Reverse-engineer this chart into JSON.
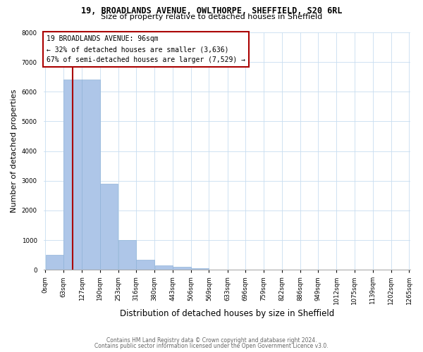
{
  "title1": "19, BROADLANDS AVENUE, OWLTHORPE, SHEFFIELD, S20 6RL",
  "title2": "Size of property relative to detached houses in Sheffield",
  "xlabel": "Distribution of detached houses by size in Sheffield",
  "ylabel": "Number of detached properties",
  "footer1": "Contains HM Land Registry data © Crown copyright and database right 2024.",
  "footer2": "Contains public sector information licensed under the Open Government Licence v3.0.",
  "annotation_line1": "19 BROADLANDS AVENUE: 96sqm",
  "annotation_line2": "← 32% of detached houses are smaller (3,636)",
  "annotation_line3": "67% of semi-detached houses are larger (7,529) →",
  "property_size": 96,
  "bar_left_edges": [
    0,
    63,
    127,
    190,
    253,
    316,
    380,
    443,
    506,
    569,
    633,
    696,
    759,
    822,
    886,
    949,
    1012,
    1075,
    1139,
    1202
  ],
  "bar_heights": [
    500,
    6400,
    6400,
    2900,
    1000,
    340,
    150,
    100,
    60,
    15,
    5,
    2,
    1,
    1,
    0,
    0,
    0,
    0,
    0,
    0
  ],
  "bar_color": "#aec6e8",
  "bar_edge_color": "#90b4d8",
  "red_line_color": "#aa0000",
  "annotation_box_edge_color": "#aa0000",
  "bg_color": "#ffffff",
  "grid_color": "#c8ddf0",
  "ylim": [
    0,
    8000
  ],
  "yticks": [
    0,
    1000,
    2000,
    3000,
    4000,
    5000,
    6000,
    7000,
    8000
  ],
  "xtick_labels": [
    "0sqm",
    "63sqm",
    "127sqm",
    "190sqm",
    "253sqm",
    "316sqm",
    "380sqm",
    "443sqm",
    "506sqm",
    "569sqm",
    "633sqm",
    "696sqm",
    "759sqm",
    "822sqm",
    "886sqm",
    "949sqm",
    "1012sqm",
    "1075sqm",
    "1139sqm",
    "1202sqm",
    "1265sqm"
  ],
  "title1_fontsize": 8.5,
  "title2_fontsize": 8.0,
  "ylabel_fontsize": 8,
  "xlabel_fontsize": 8.5,
  "tick_fontsize": 6.2,
  "footer_fontsize": 5.5
}
